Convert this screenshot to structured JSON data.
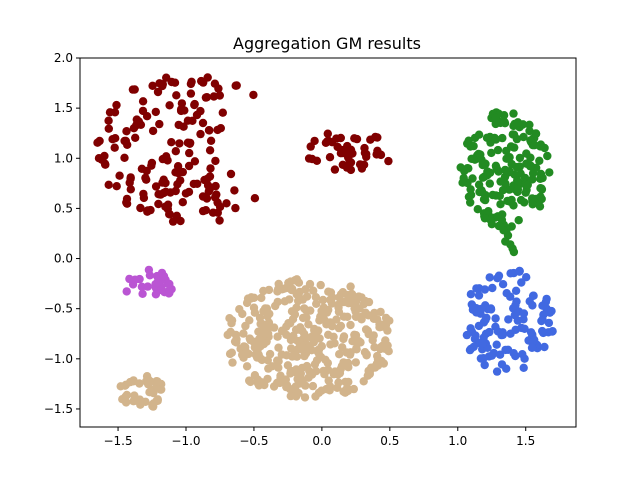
{
  "chart_data": {
    "type": "scatter",
    "title": "Aggregation GM results",
    "xlabel": "",
    "ylabel": "",
    "xlim": [
      -1.78,
      1.87
    ],
    "ylim": [
      -1.68,
      2.0
    ],
    "xticks": [
      -1.5,
      -1.0,
      -0.5,
      0.0,
      0.5,
      1.0,
      1.5
    ],
    "xtick_labels": [
      "−1.5",
      "−1.0",
      "−0.5",
      "0.0",
      "0.5",
      "1.0",
      "1.5"
    ],
    "yticks": [
      -1.5,
      -1.0,
      -0.5,
      0.0,
      0.5,
      1.0,
      1.5,
      2.0
    ],
    "ytick_labels": [
      "−1.5",
      "−1.0",
      "−0.5",
      "0.0",
      "0.5",
      "1.0",
      "1.5",
      "2.0"
    ],
    "grid": false,
    "legend": "none",
    "clusters": [
      {
        "color": "#800000",
        "shape": "crescent",
        "cx": -0.95,
        "cy": 1.1,
        "rx": 0.72,
        "ry": 0.75,
        "n": 170
      },
      {
        "color": "#800000",
        "shape": "blob",
        "cx": 0.2,
        "cy": 1.07,
        "rx": 0.34,
        "ry": 0.2,
        "n": 45
      },
      {
        "color": "#228B22",
        "shape": "blob",
        "cx": 1.35,
        "cy": 0.9,
        "rx": 0.33,
        "ry": 0.6,
        "n": 170
      },
      {
        "color": "#228B22",
        "shape": "bridge",
        "x": [
          1.3,
          1.4
        ],
        "y": [
          0.05,
          0.45
        ],
        "n": 10
      },
      {
        "color": "#4169E1",
        "shape": "blob",
        "cx": 1.37,
        "cy": -0.63,
        "rx": 0.34,
        "ry": 0.53,
        "n": 120
      },
      {
        "color": "#BA55D3",
        "shape": "blob",
        "cx": -1.27,
        "cy": -0.27,
        "rx": 0.19,
        "ry": 0.16,
        "n": 30
      },
      {
        "color": "#D2B48C",
        "shape": "blob",
        "cx": -0.1,
        "cy": -0.8,
        "rx": 0.63,
        "ry": 0.6,
        "n": 370
      },
      {
        "color": "#D2B48C",
        "shape": "blob",
        "cx": -1.32,
        "cy": -1.33,
        "rx": 0.17,
        "ry": 0.17,
        "n": 40
      }
    ]
  }
}
